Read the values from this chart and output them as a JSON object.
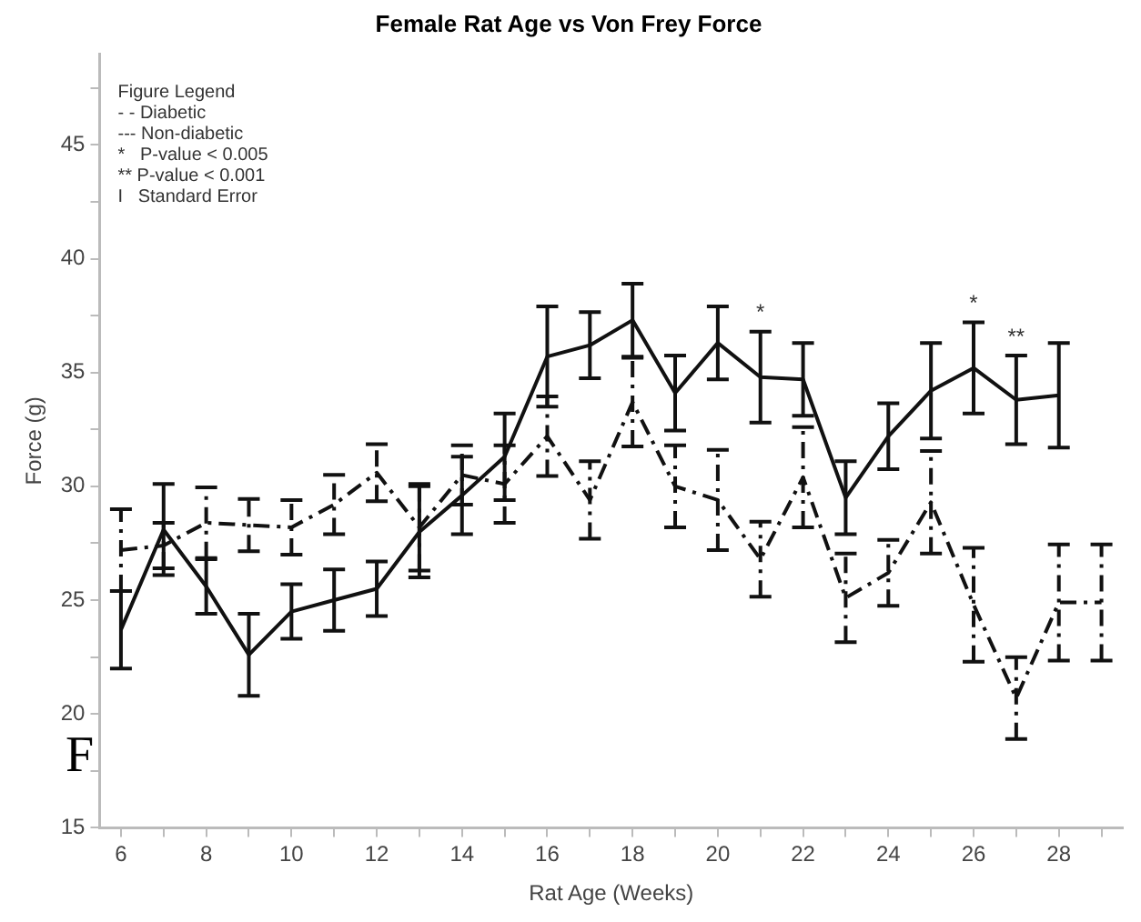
{
  "chart_data": {
    "type": "line",
    "title": "Female Rat Age vs Von Frey Force",
    "xlabel": "Rat Age (Weeks)",
    "ylabel": "Force (g)",
    "x": [
      6,
      7,
      8,
      9,
      10,
      11,
      12,
      13,
      14,
      15,
      16,
      17,
      18,
      19,
      20,
      21,
      22,
      23,
      24,
      25,
      26,
      27,
      28,
      29
    ],
    "xlim": [
      5.5,
      29.5
    ],
    "ylim": [
      15,
      49
    ],
    "xticks": [
      6,
      {
        "value": 7,
        "label": null
      },
      8,
      {
        "value": 9,
        "label": null
      },
      10,
      {
        "value": 11,
        "label": null
      },
      12,
      {
        "value": 13,
        "label": null
      },
      14,
      {
        "value": 15,
        "label": null
      },
      16,
      {
        "value": 17,
        "label": null
      },
      18,
      {
        "value": 19,
        "label": null
      },
      20,
      {
        "value": 21,
        "label": null
      },
      22,
      {
        "value": 23,
        "label": null
      },
      24,
      {
        "value": 25,
        "label": null
      },
      26,
      {
        "value": 27,
        "label": null
      },
      28,
      {
        "value": 29,
        "label": null
      }
    ],
    "yticks": [
      15,
      {
        "value": 17.5,
        "label": null
      },
      20,
      {
        "value": 22.5,
        "label": null
      },
      25,
      {
        "value": 27.5,
        "label": null
      },
      30,
      {
        "value": 32.5,
        "label": null
      },
      35,
      {
        "value": 37.5,
        "label": null
      },
      40,
      {
        "value": 42.5,
        "label": null
      },
      45,
      {
        "value": 47.5,
        "label": null
      }
    ],
    "marker": "none",
    "legend": false,
    "series": [
      {
        "color": "#111111",
        "line_style": "solid",
        "values": [
          23.7,
          28.1,
          25.6,
          22.6,
          24.5,
          25.0,
          25.5,
          28.0,
          29.6,
          31.3,
          35.7,
          36.2,
          37.3,
          34.1,
          36.3,
          34.8,
          34.7,
          29.5,
          32.2,
          34.2,
          35.2,
          33.8,
          34.0,
          null
        ],
        "errors": [
          1.7,
          2.0,
          1.2,
          1.8,
          1.2,
          1.35,
          1.2,
          2.0,
          1.7,
          1.9,
          2.2,
          1.45,
          1.6,
          1.65,
          1.6,
          2.0,
          1.6,
          1.6,
          1.45,
          2.1,
          2.0,
          1.95,
          2.3,
          null
        ]
      },
      {
        "color": "#111111",
        "line_style": "dashed",
        "values": [
          27.2,
          27.4,
          28.4,
          28.3,
          28.2,
          29.2,
          30.6,
          28.2,
          30.5,
          30.1,
          32.2,
          29.4,
          33.7,
          30.0,
          29.4,
          26.8,
          30.4,
          25.1,
          26.2,
          29.3,
          24.8,
          20.7,
          24.9,
          24.9
        ],
        "errors": [
          1.8,
          1.0,
          1.55,
          1.15,
          1.2,
          1.3,
          1.25,
          1.9,
          1.3,
          1.7,
          1.75,
          1.7,
          1.95,
          1.8,
          2.2,
          1.65,
          2.2,
          1.95,
          1.45,
          2.25,
          2.5,
          1.8,
          2.55,
          2.55
        ]
      }
    ],
    "annotations": [
      "Figure Legend",
      "- - Diabetic",
      "--- Non-diabetic",
      "*   P-value < 0.005",
      "** P-value < 0.001",
      "I   Standard Error",
      {
        "text": "*",
        "x": 21,
        "y": 34.8
      },
      {
        "text": "*",
        "x": 26,
        "y": 35.2
      },
      {
        "text": "**",
        "x": 27,
        "y": 33.8
      },
      "F"
    ]
  }
}
